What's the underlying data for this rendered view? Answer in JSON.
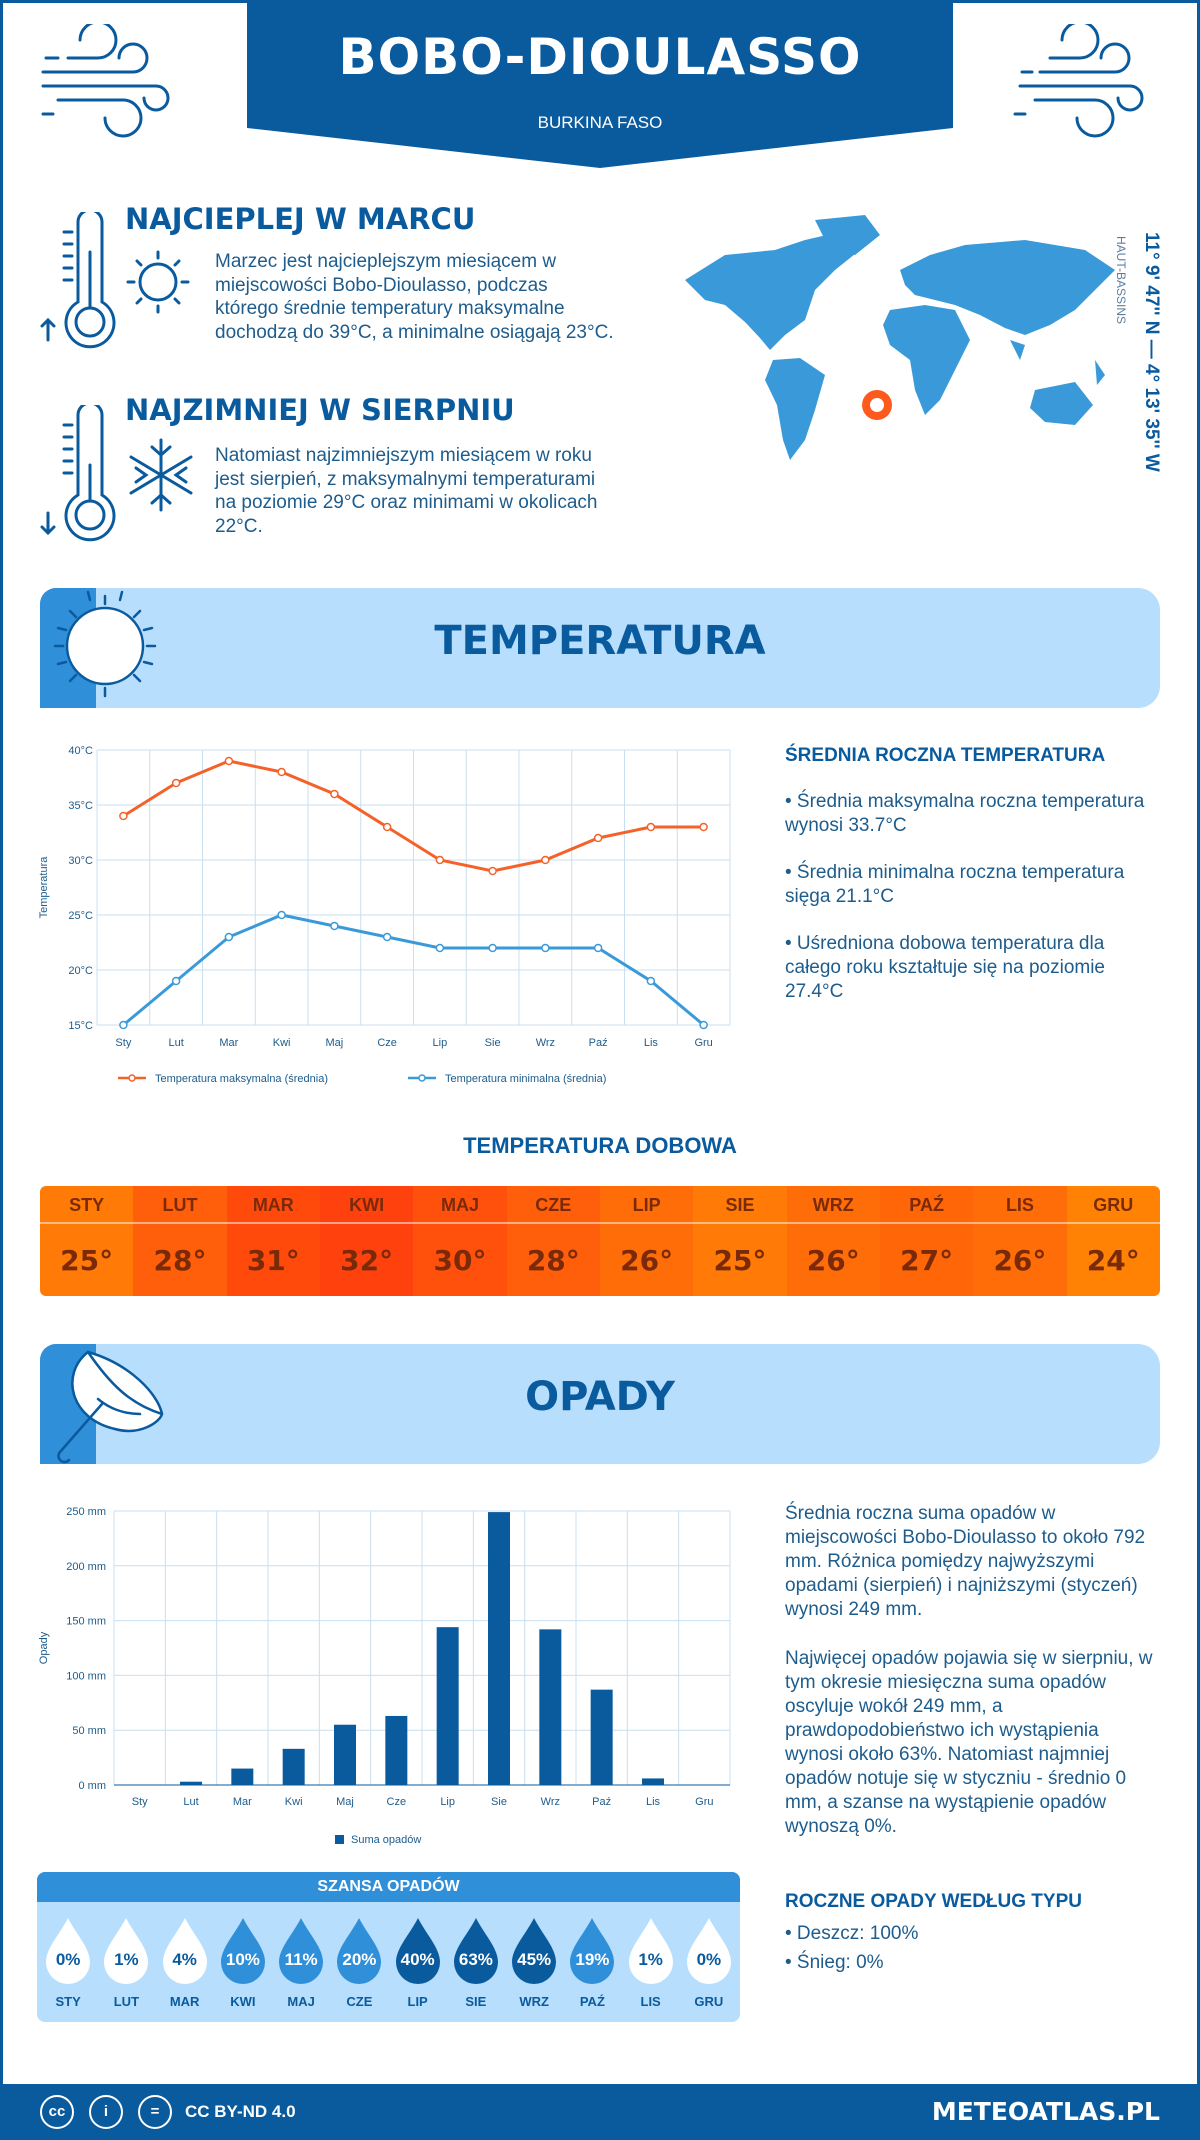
{
  "header": {
    "city": "BOBO-DIOULASSO",
    "country": "BURKINA FASO"
  },
  "facts": {
    "hottest": {
      "title": "NAJCIEPLEJ W MARCU",
      "text": "Marzec jest najcieplejszym miesiącem w miejscowości Bobo-Dioulasso, podczas którego średnie temperatury maksymalne dochodzą do 39°C, a minimalne osiągają 23°C."
    },
    "coldest": {
      "title": "NAJZIMNIEJ W SIERPNIU",
      "text": "Natomiast najzimniejszym miesiącem w roku jest sierpień, z maksymalnymi temperaturami na poziomie 29°C oraz minimami w okolicach 22°C."
    }
  },
  "location": {
    "coords": "11° 9' 47'' N — 4° 13' 35'' W",
    "region": "HAUT-BASSINS"
  },
  "temperature": {
    "section_title": "TEMPERATURA",
    "side_title": "ŚREDNIA ROCZNA TEMPERATURA",
    "side_1": "• Średnia maksymalna roczna temperatura wynosi 33.7°C",
    "side_2": "• Średnia minimalna roczna temperatura sięga 21.1°C",
    "side_3": "• Uśredniona dobowa temperatura dla całego roku kształtuje się na poziomie 27.4°C",
    "daily_title": "TEMPERATURA DOBOWA"
  },
  "daily": [
    {
      "m": "STY",
      "v": "25°",
      "c": "#ff7a06"
    },
    {
      "m": "LUT",
      "v": "28°",
      "c": "#ff5e0a"
    },
    {
      "m": "MAR",
      "v": "31°",
      "c": "#ff4a0c"
    },
    {
      "m": "KWI",
      "v": "32°",
      "c": "#ff420d"
    },
    {
      "m": "MAJ",
      "v": "30°",
      "c": "#ff510b"
    },
    {
      "m": "CZE",
      "v": "28°",
      "c": "#ff5e0a"
    },
    {
      "m": "LIP",
      "v": "26°",
      "c": "#ff6d08"
    },
    {
      "m": "SIE",
      "v": "25°",
      "c": "#ff7a06"
    },
    {
      "m": "WRZ",
      "v": "26°",
      "c": "#ff6d08"
    },
    {
      "m": "PAŹ",
      "v": "27°",
      "c": "#ff6608"
    },
    {
      "m": "LIS",
      "v": "26°",
      "c": "#ff6d08"
    },
    {
      "m": "GRU",
      "v": "24°",
      "c": "#ff8205"
    }
  ],
  "precip": {
    "section_title": "OPADY",
    "side_text_1": "Średnia roczna suma opadów w miejscowości Bobo-Dioulasso to około 792 mm. Różnica pomiędzy najwyższymi opadami (sierpień) i najniższymi (styczeń) wynosi 249 mm.",
    "side_text_2": "Najwięcej opadów pojawia się w sierpniu, w tym okresie miesięczna suma opadów oscyluje wokół 249 mm, a prawdopodobieństwo ich wystąpienia wynosi około 63%. Natomiast najmniej opadów notuje się w styczniu - średnio 0 mm, a szanse na wystąpienie opadów wynoszą 0%.",
    "type_title": "ROCZNE OPADY WEDŁUG TYPU",
    "type_1": "• Deszcz: 100%",
    "type_2": "• Śnieg: 0%",
    "chance_title": "SZANSA OPADÓW"
  },
  "chance": [
    {
      "m": "STY",
      "v": "0%",
      "level": 0
    },
    {
      "m": "LUT",
      "v": "1%",
      "level": 0
    },
    {
      "m": "MAR",
      "v": "4%",
      "level": 0
    },
    {
      "m": "KWI",
      "v": "10%",
      "level": 1
    },
    {
      "m": "MAJ",
      "v": "11%",
      "level": 1
    },
    {
      "m": "CZE",
      "v": "20%",
      "level": 1
    },
    {
      "m": "LIP",
      "v": "40%",
      "level": 2
    },
    {
      "m": "SIE",
      "v": "63%",
      "level": 2
    },
    {
      "m": "WRZ",
      "v": "45%",
      "level": 2
    },
    {
      "m": "PAŹ",
      "v": "19%",
      "level": 1
    },
    {
      "m": "LIS",
      "v": "1%",
      "level": 0
    },
    {
      "m": "GRU",
      "v": "0%",
      "level": 0
    }
  ],
  "chart_data": [
    {
      "type": "line",
      "ylabel": "Temperatura",
      "ylim": [
        15,
        40
      ],
      "yticks": [
        "15°C",
        "20°C",
        "25°C",
        "30°C",
        "35°C",
        "40°C"
      ],
      "categories": [
        "Sty",
        "Lut",
        "Mar",
        "Kwi",
        "Maj",
        "Cze",
        "Lip",
        "Sie",
        "Wrz",
        "Paź",
        "Lis",
        "Gru"
      ],
      "series": [
        {
          "name": "Temperatura maksymalna (średnia)",
          "color": "#f4622a",
          "values": [
            34,
            37,
            39,
            38,
            36,
            33,
            30,
            29,
            30,
            32,
            33,
            33
          ]
        },
        {
          "name": "Temperatura minimalna (średnia)",
          "color": "#3a9ad9",
          "values": [
            15,
            19,
            23,
            25,
            24,
            23,
            22,
            22,
            22,
            22,
            19,
            15
          ]
        }
      ],
      "grid": true,
      "legend": "bottom"
    },
    {
      "type": "bar",
      "ylabel": "Opady",
      "ylim": [
        0,
        250
      ],
      "yticks": [
        "0 mm",
        "50 mm",
        "100 mm",
        "150 mm",
        "200 mm",
        "250 mm"
      ],
      "categories": [
        "Sty",
        "Lut",
        "Mar",
        "Kwi",
        "Maj",
        "Cze",
        "Lip",
        "Sie",
        "Wrz",
        "Paź",
        "Lis",
        "Gru"
      ],
      "series": [
        {
          "name": "Suma opadów",
          "color": "#0a5a9e",
          "values": [
            0,
            3,
            15,
            33,
            55,
            63,
            144,
            249,
            142,
            87,
            6,
            0
          ]
        }
      ],
      "grid": true,
      "legend": "bottom"
    }
  ],
  "footer": {
    "license": "CC BY-ND 4.0",
    "brand": "METEOATLAS.PL"
  }
}
